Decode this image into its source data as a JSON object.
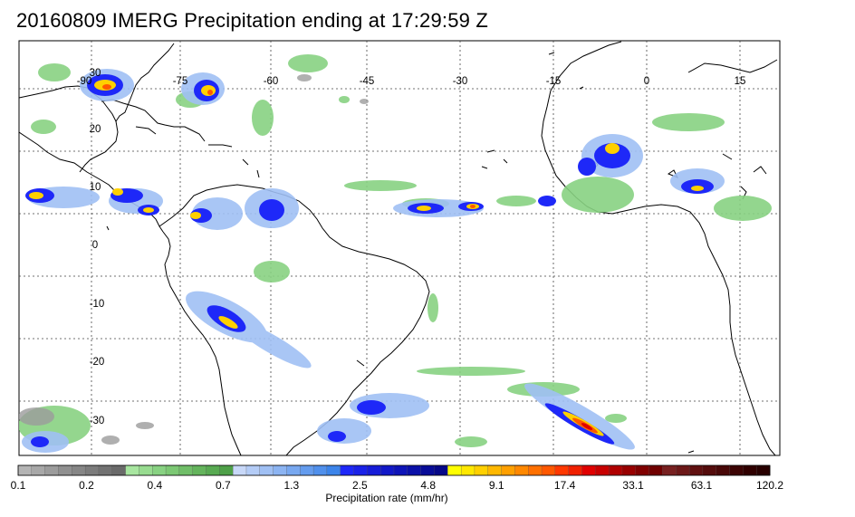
{
  "title": "20160809 IMERG Precipitation ending at 17:29:59 Z",
  "map": {
    "lon_labels": [
      "-90",
      "-75",
      "-60",
      "-45",
      "-30",
      "-15",
      "0",
      "15"
    ],
    "lat_labels": [
      "30",
      "20",
      "10",
      "0",
      "-10",
      "-20",
      "-30"
    ],
    "grid": "dotted"
  },
  "colorbar": {
    "label": "Precipitation rate (mm/hr)",
    "tick_labels": [
      "0.1",
      "0.2",
      "0.4",
      "0.7",
      "1.3",
      "2.5",
      "4.8",
      "9.1",
      "17.4",
      "33.1",
      "63.1",
      "120.2"
    ],
    "colors": [
      "#b4b4b4",
      "#a8a8a8",
      "#9c9c9c",
      "#909090",
      "#868686",
      "#7c7c7c",
      "#727272",
      "#6a6a6a",
      "#a8e6a0",
      "#98dc90",
      "#88d282",
      "#7cc874",
      "#70be68",
      "#64b45c",
      "#58aa52",
      "#4ea048",
      "#c8d8f8",
      "#b4ccf6",
      "#a0c0f4",
      "#8cb4f2",
      "#78a8f0",
      "#649cee",
      "#5090ec",
      "#3c84ea",
      "#1e28f8",
      "#1a22e8",
      "#161cd8",
      "#1218c8",
      "#0e14b8",
      "#0a10a8",
      "#080c98",
      "#060888",
      "#ffff00",
      "#ffe800",
      "#ffd000",
      "#ffb800",
      "#ffa000",
      "#ff8800",
      "#ff7000",
      "#ff5800",
      "#ff3800",
      "#f02000",
      "#e00000",
      "#c80000",
      "#b00000",
      "#980000",
      "#800000",
      "#700000",
      "#782020",
      "#6c1818",
      "#601010",
      "#540c0c",
      "#480808",
      "#3c0404",
      "#300000",
      "#280000"
    ]
  }
}
